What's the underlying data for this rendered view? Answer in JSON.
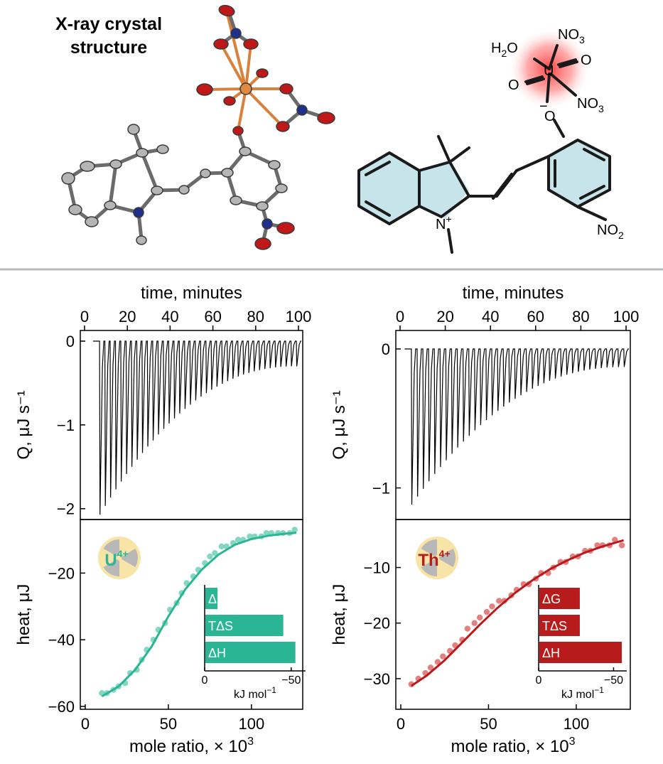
{
  "figure": {
    "structure_title_line1": "X-ray crystal",
    "structure_title_line2": "structure",
    "chem_labels": {
      "h2o": "H",
      "h2o_sub": "2",
      "h2o_o": "O",
      "no3_top": "NO",
      "no3_top_sub": "3",
      "no3_right": "NO",
      "no3_right_sub": "3",
      "o_left": "O",
      "o_right": "O",
      "uranium": "U",
      "o_minus_charge": "−",
      "o_phenolate": "O",
      "n_plus": "N",
      "n_plus_charge": "+",
      "no2": "NO",
      "no2_sub": "2"
    },
    "colors": {
      "uranium_teal": "#2ab595",
      "thorium_red": "#b81b1b",
      "uranium_points": "#6fd0b5",
      "thorium_points": "#e06a6a",
      "ring_fill": "#c6e4ea",
      "glow": "#ff3b3b",
      "ortep_grey": "#a8a8a8",
      "ortep_red": "#c01818",
      "ortep_blue": "#1e2f8c",
      "ortep_orange": "#e08a40",
      "separator": "#b8bcc2",
      "badge_bg": "#f7e4a6",
      "badge_sector": "#b8b8b8"
    }
  },
  "chart_data": [
    {
      "type": "line",
      "panel": "U4+ thermogram",
      "xlabel": "time, minutes",
      "ylabel": "Q, μJ s⁻¹",
      "xlim": [
        0,
        100
      ],
      "ylim": [
        -2.1,
        0.1
      ],
      "x_ticks": [
        "0",
        "20",
        "40",
        "60",
        "80",
        "100"
      ],
      "y_ticks": [
        "0",
        "−1",
        "−2"
      ],
      "injection_count": 38,
      "injection_start_min": 7,
      "injection_end_min": 99,
      "peak_depth_first": -2.07,
      "peak_depth_last": -0.3,
      "ion": "U"
    },
    {
      "type": "line",
      "panel": "Th4+ thermogram",
      "xlabel": "time, minutes",
      "ylabel": "Q, μJ s⁻¹",
      "xlim": [
        0,
        100
      ],
      "ylim": [
        -1.15,
        0.1
      ],
      "x_ticks": [
        "0",
        "20",
        "40",
        "60",
        "80",
        "100"
      ],
      "y_ticks": [
        "0",
        "−1"
      ],
      "injection_count": 38,
      "injection_start_min": 5,
      "injection_end_min": 99,
      "peak_depth_first": -1.12,
      "peak_depth_last": -0.13,
      "ion": "Th"
    },
    {
      "type": "scatter",
      "panel": "U4+ binding isotherm",
      "xlabel": "mole ratio, × 10",
      "xlabel_sup": "3",
      "ylabel": "heat, μJ",
      "xlim": [
        0,
        130
      ],
      "ylim": [
        -60,
        -5
      ],
      "x_ticks": [
        "0",
        "50",
        "100"
      ],
      "y_ticks": [
        "−20",
        "−40",
        "−60"
      ],
      "ion_label": "U",
      "ion_charge": "4+",
      "points_x": [
        10,
        13,
        17,
        20,
        24,
        27,
        31,
        34,
        37,
        41,
        44,
        48,
        51,
        55,
        58,
        61,
        65,
        68,
        72,
        75,
        78,
        82,
        85,
        89,
        92,
        95,
        99,
        102,
        106,
        109,
        112,
        116,
        119,
        123,
        126
      ],
      "points_y": [
        -56,
        -56,
        -55,
        -54,
        -53,
        -50,
        -49,
        -46,
        -43,
        -40,
        -37,
        -35,
        -31,
        -29,
        -26,
        -23,
        -21,
        -19,
        -17,
        -15,
        -14,
        -12,
        -12,
        -11,
        -10,
        -10,
        -9,
        -9,
        -9,
        -8,
        -8,
        -8,
        -8,
        -8,
        -7
      ],
      "fit_x": [
        10,
        20,
        30,
        40,
        50,
        60,
        70,
        80,
        90,
        100,
        110,
        120,
        127
      ],
      "fit_y": [
        -57,
        -54,
        -49,
        -42,
        -33,
        -25,
        -19,
        -14.5,
        -11.5,
        -9.8,
        -8.8,
        -8.2,
        -7.9
      ],
      "inset": {
        "bars": [
          {
            "label": "ΔG",
            "value": -7
          },
          {
            "label": "TΔS",
            "value": -45
          },
          {
            "label": "ΔH",
            "value": -52
          }
        ],
        "xlim": [
          0,
          -55
        ],
        "x_ticks": [
          "0",
          "−50"
        ],
        "xlabel": "kJ mol",
        "xlabel_sup": "−1"
      }
    },
    {
      "type": "scatter",
      "panel": "Th4+ binding isotherm",
      "xlabel": "mole ratio, × 10",
      "xlabel_sup": "3",
      "ylabel": "heat, μJ",
      "xlim": [
        0,
        130
      ],
      "ylim": [
        -35,
        -2
      ],
      "x_ticks": [
        "0",
        "50",
        "100"
      ],
      "y_ticks": [
        "−10",
        "−20",
        "−30"
      ],
      "ion_label": "Th",
      "ion_charge": "4+",
      "points_x": [
        6,
        10,
        14,
        17,
        21,
        24,
        28,
        31,
        35,
        38,
        42,
        45,
        49,
        52,
        56,
        59,
        63,
        66,
        70,
        73,
        77,
        80,
        84,
        87,
        91,
        94,
        98,
        101,
        105,
        108,
        112,
        115,
        119,
        122,
        126
      ],
      "points_y": [
        -31,
        -30,
        -29,
        -28,
        -27,
        -26,
        -25,
        -24,
        -23,
        -21,
        -20,
        -19,
        -18,
        -17,
        -16,
        -16,
        -15,
        -14,
        -13,
        -13,
        -12,
        -11,
        -11,
        -10,
        -9,
        -9,
        -8,
        -8,
        -7,
        -7,
        -6,
        -6,
        -6,
        -5,
        -6
      ],
      "fit_x": [
        6,
        15,
        25,
        35,
        45,
        55,
        65,
        75,
        85,
        95,
        105,
        115,
        127
      ],
      "fit_y": [
        -31.3,
        -29.4,
        -26.7,
        -23.5,
        -20.3,
        -17.3,
        -14.6,
        -12.3,
        -10.3,
        -8.7,
        -7.3,
        -6.2,
        -5.1
      ],
      "inset": {
        "bars": [
          {
            "label": "ΔG",
            "value": -27
          },
          {
            "label": "TΔS",
            "value": -27
          },
          {
            "label": "ΔH",
            "value": -55
          }
        ],
        "xlim": [
          0,
          -55
        ],
        "x_ticks": [
          "0",
          "−50"
        ],
        "xlabel": "kJ mol",
        "xlabel_sup": "−1"
      }
    }
  ]
}
